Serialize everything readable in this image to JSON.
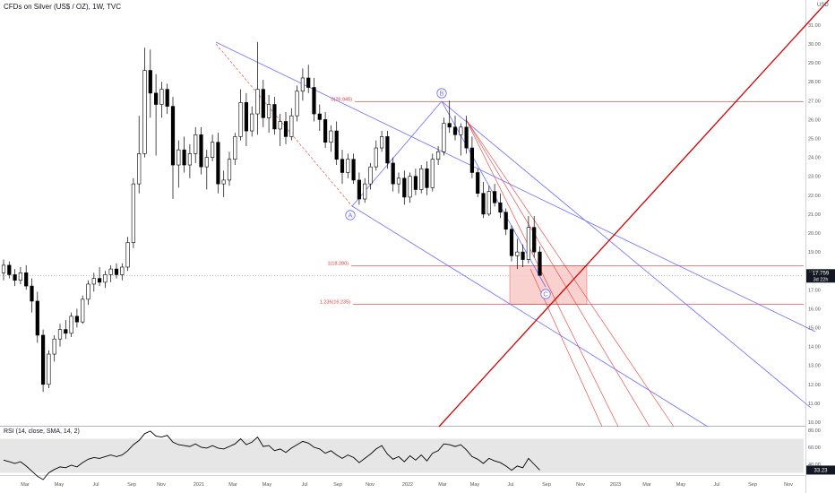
{
  "header": {
    "title": "CFDs on Silver (US$ / OZ), 1W, TVC",
    "currency": "USD"
  },
  "rsi_header": {
    "title": "RSI (14, close, SMA, 14, 2)"
  },
  "price_badge": {
    "price": "17.759",
    "countdown": "3d 22h"
  },
  "rsi_badge": {
    "value": "33.23"
  },
  "fib_labels": [
    {
      "text": "0(26.945)",
      "price": 26.945
    },
    {
      "text": "1(18.280)",
      "price": 18.28
    },
    {
      "text": "1.236(16.235)",
      "price": 16.235
    }
  ],
  "wave_labels": [
    "A",
    "B",
    "C"
  ],
  "colors": {
    "bull": "#ffffff",
    "bear": "#000000",
    "wick": "#000000",
    "channel": "#6c6cff",
    "fib": "#e53935",
    "big_line": "#d50000",
    "zone_fill": "#f8c9c7",
    "rsi_band": "#e6e6e6"
  },
  "chart_data": [
    {
      "type": "candlestick",
      "title": "CFDs on Silver (US$ / OZ), 1W, TVC",
      "y_axis": {
        "label": "USD",
        "ticks": [
          "10.00",
          "11.00",
          "12.00",
          "13.00",
          "14.00",
          "15.00",
          "16.00",
          "17.00",
          "18.00",
          "19.00",
          "20.00",
          "21.00",
          "22.00",
          "23.00",
          "24.00",
          "25.00",
          "26.00",
          "27.00",
          "28.00",
          "29.00",
          "30.00",
          "31.00"
        ],
        "range": [
          10,
          31.8
        ]
      },
      "x_axis": {
        "ticks": [
          "Mar",
          "May",
          "Jul",
          "Sep",
          "Nov",
          "2021",
          "Mar",
          "May",
          "Jul",
          "Sep",
          "Nov",
          "2022",
          "Mar",
          "May",
          "Jul",
          "Sep",
          "Nov",
          "2023",
          "Mar",
          "May",
          "Jul",
          "Sep",
          "Nov"
        ]
      },
      "candles_ohlc": [
        [
          17.9,
          18.6,
          17.5,
          18.3
        ],
        [
          18.3,
          18.5,
          17.6,
          17.8
        ],
        [
          17.8,
          18.1,
          17.2,
          17.5
        ],
        [
          17.5,
          18.2,
          17.3,
          17.9
        ],
        [
          17.9,
          18.3,
          17.0,
          17.2
        ],
        [
          17.2,
          17.6,
          15.8,
          16.4
        ],
        [
          16.4,
          16.9,
          14.2,
          14.6
        ],
        [
          14.6,
          14.9,
          11.6,
          12.0
        ],
        [
          12.0,
          13.8,
          11.8,
          13.6
        ],
        [
          13.6,
          14.6,
          13.2,
          14.4
        ],
        [
          14.4,
          15.2,
          14.0,
          14.9
        ],
        [
          14.9,
          15.4,
          14.4,
          14.7
        ],
        [
          14.7,
          15.8,
          14.5,
          15.6
        ],
        [
          15.6,
          16.0,
          15.0,
          15.3
        ],
        [
          15.3,
          16.7,
          15.2,
          16.5
        ],
        [
          16.5,
          17.5,
          16.2,
          17.3
        ],
        [
          17.3,
          17.9,
          16.9,
          17.6
        ],
        [
          17.6,
          18.2,
          17.2,
          17.4
        ],
        [
          17.4,
          18.0,
          17.1,
          17.8
        ],
        [
          17.8,
          18.3,
          17.4,
          18.1
        ],
        [
          18.1,
          18.4,
          17.6,
          17.8
        ],
        [
          17.8,
          18.4,
          17.5,
          18.2
        ],
        [
          18.2,
          19.8,
          18.0,
          19.5
        ],
        [
          19.5,
          22.9,
          19.2,
          22.6
        ],
        [
          22.6,
          26.2,
          22.1,
          24.2
        ],
        [
          24.2,
          29.8,
          24.0,
          28.6
        ],
        [
          28.6,
          29.7,
          26.1,
          27.4
        ],
        [
          27.4,
          28.4,
          24.1,
          26.8
        ],
        [
          26.8,
          28.0,
          26.1,
          27.6
        ],
        [
          27.6,
          27.9,
          26.3,
          26.7
        ],
        [
          26.7,
          27.2,
          21.8,
          23.6
        ],
        [
          23.6,
          24.9,
          22.4,
          24.4
        ],
        [
          24.4,
          25.1,
          23.2,
          23.6
        ],
        [
          23.6,
          24.7,
          22.9,
          24.2
        ],
        [
          24.2,
          25.6,
          23.7,
          25.2
        ],
        [
          25.2,
          25.6,
          23.1,
          23.5
        ],
        [
          23.5,
          24.4,
          22.3,
          24.0
        ],
        [
          24.0,
          25.2,
          23.8,
          24.8
        ],
        [
          24.8,
          25.3,
          22.1,
          22.6
        ],
        [
          22.6,
          23.3,
          21.9,
          22.8
        ],
        [
          22.8,
          24.3,
          22.5,
          23.9
        ],
        [
          23.9,
          25.3,
          23.6,
          25.1
        ],
        [
          25.1,
          27.6,
          24.9,
          26.9
        ],
        [
          26.9,
          27.4,
          24.6,
          25.4
        ],
        [
          25.4,
          26.7,
          25.1,
          26.3
        ],
        [
          26.3,
          30.1,
          25.2,
          27.6
        ],
        [
          27.6,
          28.1,
          25.6,
          26.1
        ],
        [
          26.1,
          27.3,
          25.3,
          26.8
        ],
        [
          26.8,
          27.2,
          25.2,
          25.5
        ],
        [
          25.5,
          26.3,
          24.6,
          25.9
        ],
        [
          25.9,
          26.4,
          24.7,
          25.1
        ],
        [
          25.1,
          26.6,
          24.9,
          26.2
        ],
        [
          26.2,
          27.8,
          25.9,
          27.5
        ],
        [
          27.5,
          28.7,
          27.0,
          28.2
        ],
        [
          28.2,
          28.9,
          27.4,
          27.7
        ],
        [
          27.7,
          28.2,
          25.9,
          26.3
        ],
        [
          26.3,
          26.8,
          25.4,
          26.0
        ],
        [
          26.0,
          26.4,
          24.5,
          24.8
        ],
        [
          24.8,
          25.7,
          24.3,
          25.4
        ],
        [
          25.4,
          25.9,
          23.6,
          23.9
        ],
        [
          23.9,
          24.4,
          22.6,
          23.2
        ],
        [
          23.2,
          24.2,
          22.9,
          23.9
        ],
        [
          23.9,
          24.2,
          22.6,
          22.8
        ],
        [
          22.8,
          23.2,
          21.5,
          21.8
        ],
        [
          21.8,
          22.9,
          21.6,
          22.6
        ],
        [
          22.6,
          23.7,
          22.3,
          23.5
        ],
        [
          23.5,
          24.9,
          23.3,
          24.5
        ],
        [
          24.5,
          25.4,
          24.3,
          25.1
        ],
        [
          25.1,
          25.4,
          23.4,
          23.7
        ],
        [
          23.7,
          24.0,
          22.2,
          22.6
        ],
        [
          22.6,
          23.2,
          22.1,
          22.9
        ],
        [
          22.9,
          23.3,
          21.5,
          21.9
        ],
        [
          21.9,
          23.2,
          21.6,
          23.0
        ],
        [
          23.0,
          23.4,
          22.0,
          22.3
        ],
        [
          22.3,
          23.6,
          22.1,
          23.4
        ],
        [
          23.4,
          23.8,
          22.0,
          22.4
        ],
        [
          22.4,
          24.2,
          22.2,
          23.9
        ],
        [
          23.9,
          24.6,
          23.6,
          24.3
        ],
        [
          24.3,
          26.1,
          24.1,
          25.8
        ],
        [
          25.8,
          27.0,
          25.3,
          25.6
        ],
        [
          25.6,
          26.2,
          24.9,
          25.2
        ],
        [
          25.2,
          25.8,
          24.1,
          25.6
        ],
        [
          25.6,
          26.2,
          24.2,
          24.5
        ],
        [
          24.5,
          25.1,
          22.9,
          23.2
        ],
        [
          23.2,
          23.4,
          21.9,
          22.1
        ],
        [
          22.1,
          22.7,
          20.8,
          21.0
        ],
        [
          21.0,
          22.5,
          20.9,
          22.2
        ],
        [
          22.2,
          22.6,
          21.4,
          21.6
        ],
        [
          21.6,
          22.1,
          20.8,
          21.1
        ],
        [
          21.1,
          21.3,
          19.9,
          20.2
        ],
        [
          20.2,
          20.4,
          18.5,
          18.8
        ],
        [
          18.8,
          19.7,
          18.1,
          19.0
        ],
        [
          19.0,
          19.4,
          18.2,
          18.6
        ],
        [
          18.6,
          20.9,
          18.4,
          20.3
        ],
        [
          20.3,
          20.9,
          18.7,
          19.0
        ],
        [
          19.0,
          19.3,
          17.8,
          17.759
        ]
      ]
    },
    {
      "type": "line",
      "title": "RSI (14, close, SMA, 14, 2)",
      "y_axis": {
        "ticks": [
          "40.00",
          "60.00",
          "80.00"
        ]
      },
      "reference_band": [
        30,
        70
      ],
      "values": [
        45,
        43,
        41,
        43,
        38,
        32,
        26,
        22,
        30,
        34,
        37,
        36,
        39,
        37,
        42,
        46,
        48,
        47,
        49,
        51,
        49,
        51,
        56,
        63,
        68,
        76,
        79,
        73,
        72,
        74,
        66,
        63,
        62,
        61,
        64,
        60,
        59,
        62,
        59,
        58,
        61,
        64,
        70,
        63,
        66,
        72,
        61,
        62,
        56,
        58,
        54,
        59,
        63,
        67,
        65,
        60,
        58,
        53,
        56,
        51,
        47,
        51,
        48,
        42,
        47,
        52,
        58,
        62,
        52,
        46,
        49,
        43,
        50,
        45,
        51,
        44,
        53,
        56,
        64,
        63,
        61,
        63,
        57,
        49,
        46,
        41,
        47,
        44,
        42,
        38,
        33,
        38,
        36,
        47,
        40,
        33.23
      ]
    }
  ]
}
